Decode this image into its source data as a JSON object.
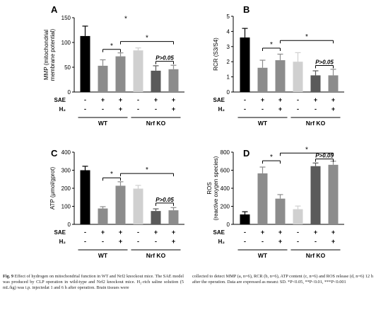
{
  "figure": {
    "rows": [
      {
        "label": "SAE",
        "marks": [
          "-",
          "+",
          "+",
          "-",
          "+",
          "+"
        ]
      },
      {
        "label": "H₂",
        "marks": [
          "-",
          "-",
          "+",
          "-",
          "-",
          "+"
        ]
      }
    ],
    "groups": [
      {
        "label": "WT",
        "bars": [
          0,
          1,
          2
        ]
      },
      {
        "label": "Nrf KO",
        "bars": [
          3,
          4,
          5
        ]
      }
    ],
    "bar_colors": [
      "#000000",
      "#8c8c8c",
      "#8c8c8c",
      "#d0d0d0",
      "#5a5a5a",
      "#8c8c8c"
    ]
  },
  "chart_data": [
    {
      "type": "bar",
      "panel": "A",
      "ylabel_lines": [
        "MMP (mitochondrial",
        "membrane potential)"
      ],
      "ylim": [
        0,
        150
      ],
      "yticks": [
        0,
        50,
        100,
        150
      ],
      "values": [
        113,
        53,
        72,
        84,
        43,
        46
      ],
      "errors": [
        20,
        12,
        7,
        5,
        10,
        8
      ],
      "annotations": [
        {
          "text": "*",
          "type": "star_only",
          "x_between": [
            1.5,
            2.5
          ],
          "y": 148
        },
        {
          "text": "*",
          "type": "bracket",
          "from": 1,
          "to": 2,
          "y": 86
        },
        {
          "text": "*",
          "type": "bracket",
          "from": 2,
          "to": 5,
          "y": 102
        },
        {
          "text": "P>0.05",
          "type": "bracket",
          "from": 4,
          "to": 5,
          "y": 62
        }
      ]
    },
    {
      "type": "bar",
      "panel": "B",
      "ylabel_lines": [
        "RCR (S3/S4)"
      ],
      "ylim": [
        0,
        5
      ],
      "yticks": [
        0,
        1,
        2,
        3,
        4,
        5
      ],
      "values": [
        3.6,
        1.6,
        2.1,
        2.0,
        1.1,
        1.1
      ],
      "errors": [
        0.6,
        0.5,
        0.4,
        0.6,
        0.3,
        0.4
      ],
      "annotations": [
        {
          "text": "*",
          "type": "bracket",
          "from": 1,
          "to": 2,
          "y": 2.9
        },
        {
          "text": "*",
          "type": "bracket",
          "from": 2,
          "to": 5,
          "y": 3.4
        },
        {
          "text": "P>0.05",
          "type": "bracket",
          "from": 4,
          "to": 5,
          "y": 1.75
        }
      ]
    },
    {
      "type": "bar",
      "panel": "C",
      "ylabel_lines": [
        "ATP (μmol/gprot)"
      ],
      "ylim": [
        0,
        400
      ],
      "yticks": [
        0,
        100,
        200,
        300,
        400
      ],
      "values": [
        300,
        88,
        214,
        198,
        74,
        78
      ],
      "errors": [
        22,
        10,
        22,
        18,
        12,
        15
      ],
      "annotations": [
        {
          "text": "*",
          "type": "bracket",
          "from": 1,
          "to": 2,
          "y": 258
        },
        {
          "text": "*",
          "type": "bracket",
          "from": 2,
          "to": 5,
          "y": 282
        },
        {
          "text": "P>0.05",
          "type": "bracket",
          "from": 4,
          "to": 5,
          "y": 118
        }
      ]
    },
    {
      "type": "bar",
      "panel": "D",
      "ylabel_lines": [
        "ROS",
        "(reactive oxygen species)"
      ],
      "ylim": [
        0,
        800
      ],
      "yticks": [
        0,
        200,
        400,
        600,
        800
      ],
      "values": [
        110,
        565,
        285,
        168,
        645,
        660
      ],
      "errors": [
        30,
        70,
        45,
        35,
        35,
        40
      ],
      "annotations": [
        {
          "text": "*",
          "type": "bracket",
          "from": 1,
          "to": 2,
          "y": 705
        },
        {
          "text": "*",
          "type": "bracket",
          "from": 2,
          "to": 5,
          "y": 790
        },
        {
          "text": "P>0.05",
          "type": "bracket",
          "from": 4,
          "to": 5,
          "y": 725
        }
      ]
    }
  ],
  "caption": {
    "label": "Fig. 9",
    "left": " Effect of hydrogen on mitochondrial function in WT and Nrf2 knockout mice. The SAE model was produced by CLP operation in wild-type and Nrf2 knockout mice. H₂-rich saline solution (5 mL/kg) was i.p. injectedat 1 and 6 h after operation. Brain tissues were",
    "right": "collected to detect MMP (a, n=6), RCR (b, n=6), ATP content (c, n=6) and ROS release (d, n=6) 12 h after the operation. Data are expressed as mean± SD. *P<0.05, **P<0.01, ***P<0.001"
  }
}
